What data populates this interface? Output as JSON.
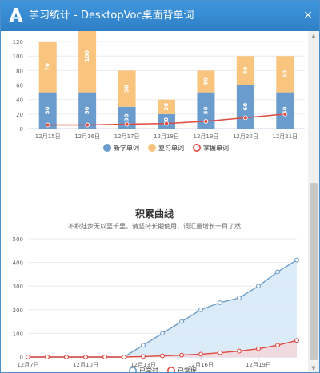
{
  "window": {
    "title": "学习统计 - DesktopVoc桌面背单词",
    "close_symbol": "×"
  },
  "colors": {
    "titlebar": "#3389d1",
    "new_words": "#6b9cce",
    "review_words": "#f8c47e",
    "mastered": "#e04a3f",
    "learned_line": "#6f9ec8",
    "learned_fill": "#d6e8f7"
  },
  "chart_data": [
    {
      "type": "bar",
      "categories": [
        "12月15日",
        "12月16日",
        "12月17日",
        "12月18日",
        "12月19日",
        "12月20日",
        "12月21日"
      ],
      "series": [
        {
          "name": "新学单词",
          "values": [
            50,
            50,
            30,
            20,
            50,
            60,
            50
          ]
        },
        {
          "name": "复习单词",
          "values": [
            70,
            100,
            50,
            20,
            30,
            40,
            50
          ]
        },
        {
          "name": "掌握单词",
          "values": [
            5,
            5,
            6,
            7,
            10,
            15,
            20
          ]
        }
      ],
      "ylim": [
        0,
        130
      ],
      "yticks": [
        0,
        20,
        40,
        60,
        80,
        100,
        120
      ],
      "legend": "bottom"
    },
    {
      "type": "area",
      "title": "积累曲线",
      "subtitle": "不积跬步无以至千里，请坚持长期使用，词汇量增长一目了然",
      "xticks": [
        "12月7日",
        "12月10日",
        "12月13日",
        "12月16日",
        "12月19日"
      ],
      "ylim": [
        0,
        500
      ],
      "yticks": [
        0,
        100,
        200,
        300,
        400,
        500
      ],
      "series": [
        {
          "name": "已学过",
          "values": [
            0,
            0,
            0,
            0,
            0,
            0,
            50,
            100,
            150,
            200,
            230,
            250,
            300,
            360,
            410
          ]
        },
        {
          "name": "已掌握",
          "values": [
            0,
            0,
            0,
            0,
            0,
            0,
            2,
            5,
            8,
            12,
            18,
            25,
            35,
            50,
            70
          ]
        }
      ],
      "legend": "bottom"
    }
  ]
}
